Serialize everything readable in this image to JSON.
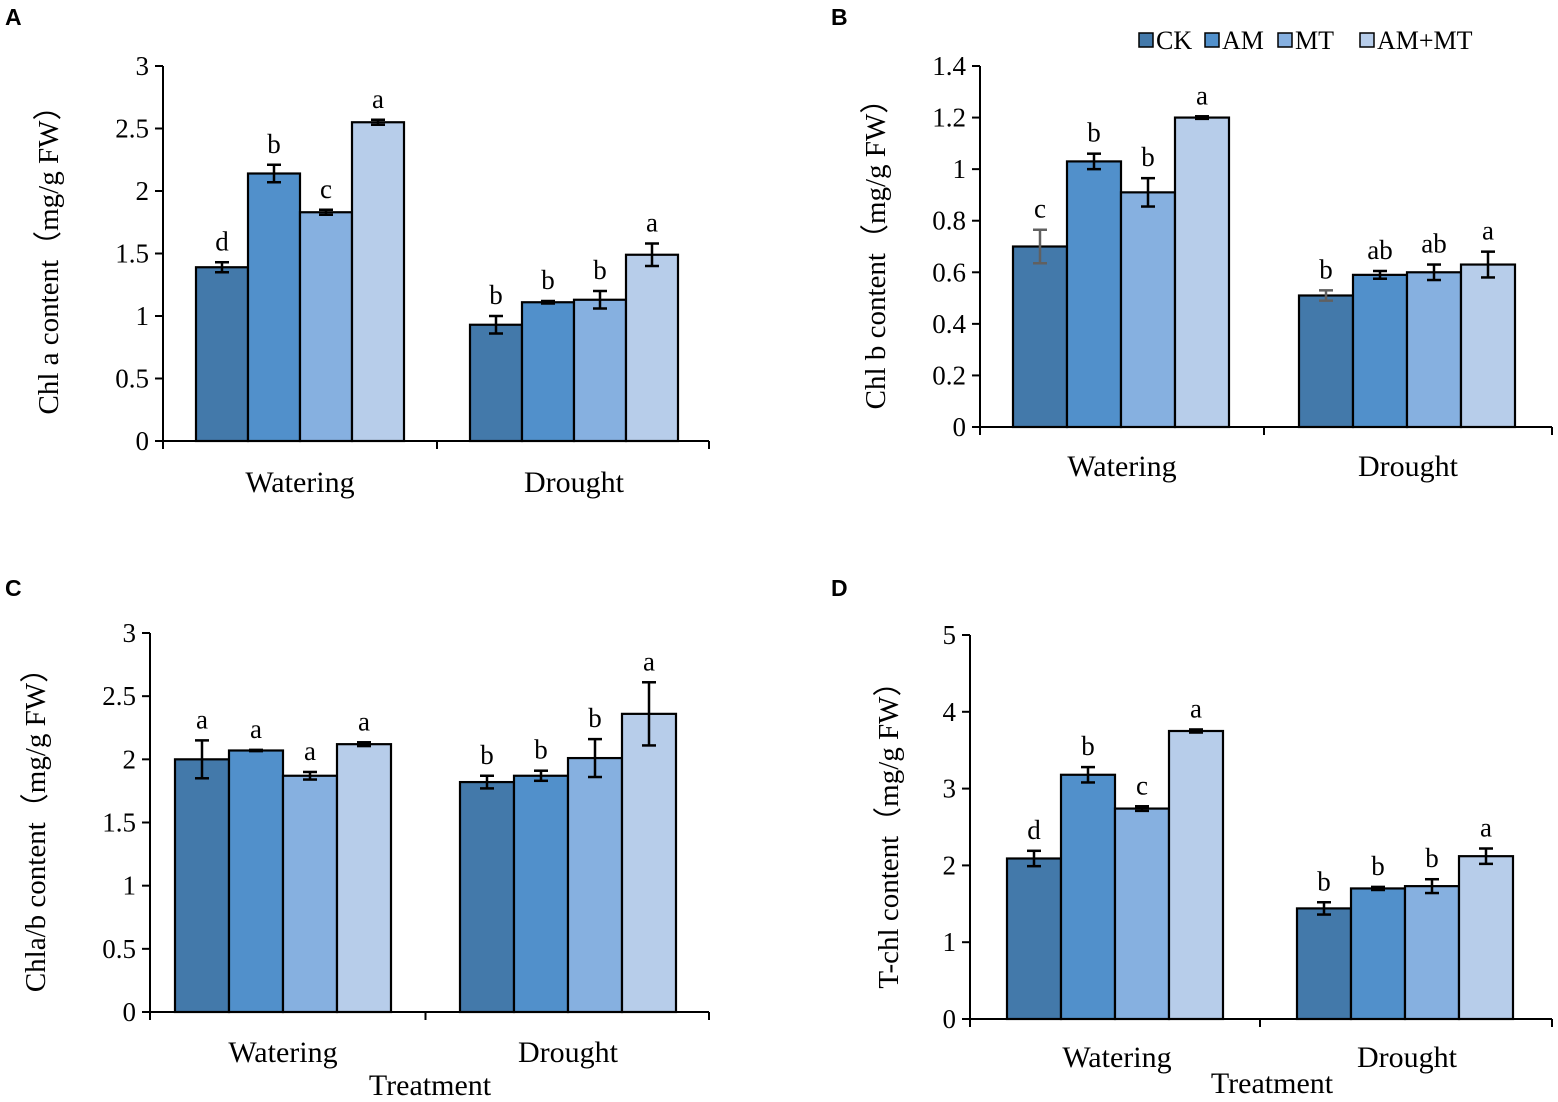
{
  "colors": {
    "CK": "#4379aa",
    "AM": "#5190cb",
    "MT": "#86b0e0",
    "AM+MT": "#b7cdea",
    "stroke": "#000000",
    "ck_error_bar_B": "#606060"
  },
  "chart_data": [
    {
      "type": "bar",
      "panel": "A",
      "title": "",
      "categories": [
        "Watering",
        "Drought"
      ],
      "series": [
        {
          "name": "CK",
          "values": [
            1.39,
            0.93
          ],
          "errors": [
            0.04,
            0.07
          ],
          "letters": [
            "d",
            "b"
          ]
        },
        {
          "name": "AM",
          "values": [
            2.14,
            1.11
          ],
          "errors": [
            0.07,
            0.01
          ],
          "letters": [
            "b",
            "b"
          ]
        },
        {
          "name": "MT",
          "values": [
            1.83,
            1.13
          ],
          "errors": [
            0.02,
            0.07
          ],
          "letters": [
            "c",
            "b"
          ]
        },
        {
          "name": "AM+MT",
          "values": [
            2.55,
            1.49
          ],
          "errors": [
            0.02,
            0.09
          ],
          "letters": [
            "a",
            "a"
          ]
        }
      ],
      "ylabel": "Chl a content（mg/g  FW）",
      "xlabel": "",
      "ylim": [
        0,
        3
      ],
      "yticks": [
        0,
        0.5,
        1,
        1.5,
        2,
        2.5,
        3
      ],
      "ytick_labels": [
        "0",
        "0.5",
        "1",
        "1.5",
        "2",
        "2.5",
        "3"
      ],
      "grid": false
    },
    {
      "type": "bar",
      "panel": "B",
      "title": "",
      "categories": [
        "Watering",
        "Drought"
      ],
      "series": [
        {
          "name": "CK",
          "values": [
            0.7,
            0.51
          ],
          "errors": [
            0.065,
            0.02
          ],
          "letters": [
            "c",
            "b"
          ]
        },
        {
          "name": "AM",
          "values": [
            1.03,
            0.59
          ],
          "errors": [
            0.03,
            0.015
          ],
          "letters": [
            "b",
            "ab"
          ]
        },
        {
          "name": "MT",
          "values": [
            0.91,
            0.6
          ],
          "errors": [
            0.055,
            0.03
          ],
          "letters": [
            "b",
            "ab"
          ]
        },
        {
          "name": "AM+MT",
          "values": [
            1.2,
            0.63
          ],
          "errors": [
            0.005,
            0.05
          ],
          "letters": [
            "a",
            "a"
          ]
        }
      ],
      "ylabel": "Chl b content（mg/g  FW）",
      "xlabel": "",
      "ylim": [
        0,
        1.4
      ],
      "yticks": [
        0,
        0.2,
        0.4,
        0.6,
        0.8,
        1,
        1.2,
        1.4
      ],
      "ytick_labels": [
        "0",
        "0.2",
        "0.4",
        "0.6",
        "0.8",
        "1",
        "1.2",
        "1.4"
      ],
      "legend": [
        "CK",
        "AM",
        "MT",
        "AM+MT"
      ],
      "legend_position": "top-right",
      "grid": false
    },
    {
      "type": "bar",
      "panel": "C",
      "title": "",
      "categories": [
        "Watering",
        "Drought"
      ],
      "series": [
        {
          "name": "CK",
          "values": [
            2.0,
            1.82
          ],
          "errors": [
            0.15,
            0.05
          ],
          "letters": [
            "a",
            "b"
          ]
        },
        {
          "name": "AM",
          "values": [
            2.07,
            1.87
          ],
          "errors": [
            0.005,
            0.04
          ],
          "letters": [
            "a",
            "b"
          ]
        },
        {
          "name": "MT",
          "values": [
            1.87,
            2.01
          ],
          "errors": [
            0.03,
            0.15
          ],
          "letters": [
            "a",
            "b"
          ]
        },
        {
          "name": "AM+MT",
          "values": [
            2.12,
            2.36
          ],
          "errors": [
            0.015,
            0.25
          ],
          "letters": [
            "a",
            "a"
          ]
        }
      ],
      "ylabel": "Chla/b content（mg/g  FW）",
      "xlabel": "Treatment",
      "ylim": [
        0,
        3
      ],
      "yticks": [
        0,
        0.5,
        1,
        1.5,
        2,
        2.5,
        3
      ],
      "ytick_labels": [
        "0",
        "0.5",
        "1",
        "1.5",
        "2",
        "2.5",
        "3"
      ],
      "grid": false
    },
    {
      "type": "bar",
      "panel": "D",
      "title": "",
      "categories": [
        "Watering",
        "Drought"
      ],
      "series": [
        {
          "name": "CK",
          "values": [
            2.09,
            1.44
          ],
          "errors": [
            0.1,
            0.08
          ],
          "letters": [
            "d",
            "b"
          ]
        },
        {
          "name": "AM",
          "values": [
            3.18,
            1.7
          ],
          "errors": [
            0.1,
            0.02
          ],
          "letters": [
            "b",
            "b"
          ]
        },
        {
          "name": "MT",
          "values": [
            2.74,
            1.73
          ],
          "errors": [
            0.03,
            0.09
          ],
          "letters": [
            "c",
            "b"
          ]
        },
        {
          "name": "AM+MT",
          "values": [
            3.75,
            2.12
          ],
          "errors": [
            0.02,
            0.1
          ],
          "letters": [
            "a",
            "a"
          ]
        }
      ],
      "ylabel": "T-chl content（mg/g  FW）",
      "xlabel": "Treatment",
      "ylim": [
        0,
        5
      ],
      "yticks": [
        0,
        1,
        2,
        3,
        4,
        5
      ],
      "ytick_labels": [
        "0",
        "1",
        "2",
        "3",
        "4",
        "5"
      ],
      "grid": false
    }
  ]
}
